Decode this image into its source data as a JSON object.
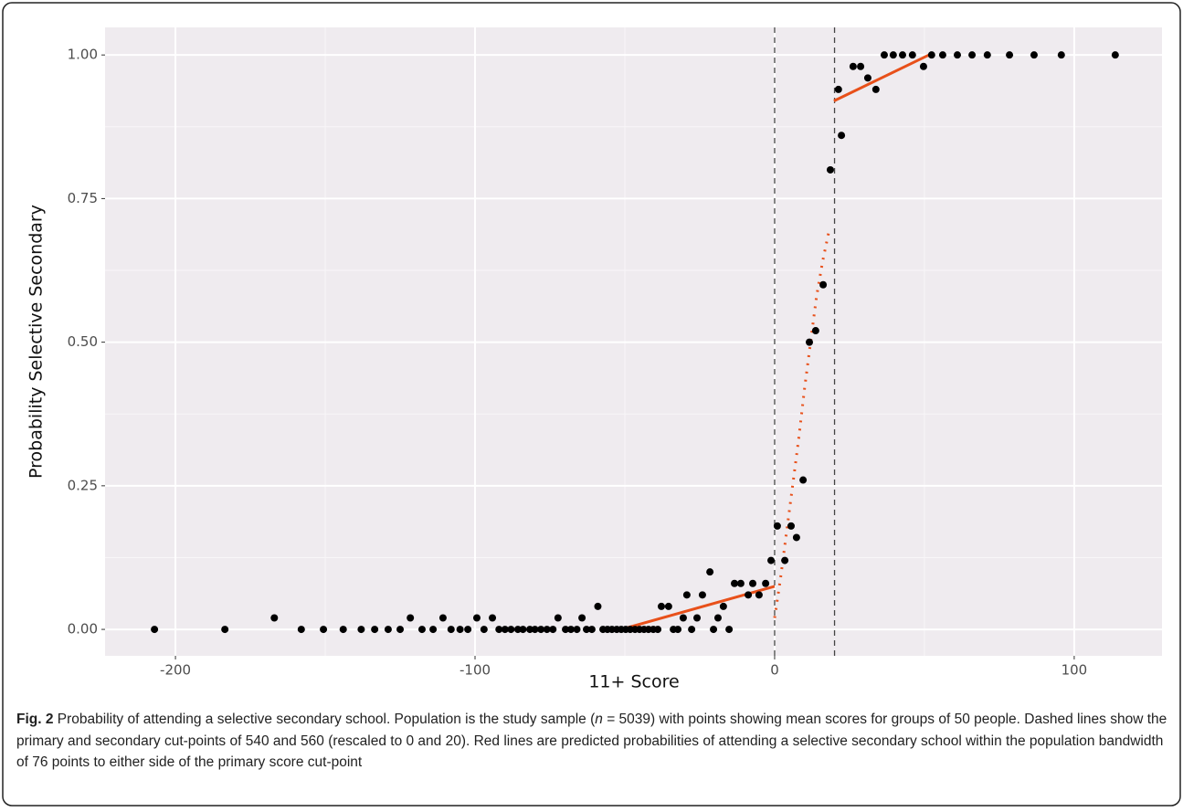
{
  "chart_data": {
    "type": "scatter",
    "xlabel": "11+ Score",
    "ylabel": "Probability Selective Secondary",
    "xlim": [
      -223.5,
      129.3
    ],
    "ylim": [
      -0.046,
      1.048
    ],
    "xticks": [
      -200,
      -100,
      0,
      100
    ],
    "yticks": [
      {
        "value": 0,
        "label": "0.00"
      },
      {
        "value": 0.25,
        "label": "0.25"
      },
      {
        "value": 0.5,
        "label": "0.50"
      },
      {
        "value": 0.75,
        "label": "0.75"
      },
      {
        "value": 1,
        "label": "1.00"
      }
    ],
    "grid": true,
    "vlines": [
      0,
      20
    ],
    "points": {
      "color": "#000000",
      "x": [
        -207,
        -183.5,
        -167,
        -158,
        -150.6,
        -144,
        -138,
        -133.5,
        -129,
        -125,
        -121.6,
        -117.7,
        -114,
        -110.7,
        -108,
        -105,
        -102.4,
        -99.4,
        -97,
        -94.2,
        -92,
        -90,
        -88,
        -85.7,
        -84,
        -81.7,
        -80,
        -78,
        -76,
        -74,
        -72.3,
        -69.8,
        -68,
        -66,
        -64.3,
        -62.8,
        -61,
        -59,
        -57.3,
        -55.8,
        -54.3,
        -52.7,
        -51.2,
        -49.7,
        -48.2,
        -46.6,
        -45.1,
        -43.6,
        -42.1,
        -40.5,
        -39,
        -37.8,
        -35.4,
        -33.8,
        -32.3,
        -30.5,
        -29.3,
        -27.7,
        -25.9,
        -24.1,
        -21.6,
        -20.4,
        -18.9,
        -17.1,
        -15.2,
        -13.4,
        -11.3,
        -8.8,
        -7.3,
        -5.2,
        -3,
        -1.2,
        0.9,
        3.4,
        5.5,
        7.3,
        9.5,
        11.6,
        13.7,
        16.2,
        18.6,
        21.3,
        22.3,
        26.2,
        28.7,
        31.1,
        33.8,
        36.6,
        39.6,
        42.7,
        46,
        49.7,
        52.4,
        56.1,
        61,
        65.9,
        71,
        78.4,
        86.6,
        95.7,
        113.7
      ],
      "values": [
        0,
        0,
        0.02,
        0,
        0,
        0,
        0,
        0,
        0,
        0,
        0.02,
        0,
        0,
        0.02,
        0,
        0,
        0,
        0.02,
        0,
        0.02,
        0,
        0,
        0,
        0,
        0,
        0,
        0,
        0,
        0,
        0,
        0.02,
        0,
        0,
        0,
        0.02,
        0,
        0,
        0.04,
        0,
        0,
        0,
        0,
        0,
        0,
        0,
        0,
        0,
        0,
        0,
        0,
        0,
        0.04,
        0.04,
        0,
        0,
        0.02,
        0.06,
        0,
        0.02,
        0.06,
        0.1,
        0,
        0.02,
        0.04,
        0,
        0.08,
        0.08,
        0.06,
        0.08,
        0.06,
        0.08,
        0.12,
        0.18,
        0.12,
        0.18,
        0.16,
        0.26,
        0.5,
        0.52,
        0.6,
        0.8,
        0.94,
        0.86,
        0.98,
        0.98,
        0.96,
        0.94,
        1,
        1,
        1,
        1,
        0.98,
        1,
        1,
        1,
        1,
        1,
        1,
        1,
        1,
        1
      ]
    },
    "lines": [
      {
        "color": "#e8501a",
        "style": "solid",
        "x": [
          -51.2,
          0
        ],
        "values": [
          0,
          0.075
        ]
      },
      {
        "color": "#e8501a",
        "style": "dotted",
        "x": [
          0,
          2,
          4,
          6,
          8,
          10,
          12,
          14,
          16,
          18
        ],
        "values": [
          0.02,
          0.09,
          0.17,
          0.25,
          0.33,
          0.42,
          0.5,
          0.58,
          0.64,
          0.69
        ]
      },
      {
        "color": "#e8501a",
        "style": "solid",
        "x": [
          19.8,
          51.5
        ],
        "values": [
          0.92,
          1
        ]
      }
    ]
  },
  "caption": {
    "label": "Fig. 2",
    "parts": [
      " Probability of attending a selective secondary school. Population is the study sample (",
      "n",
      " = 5039) with points showing mean scores for groups of 50 people. Dashed lines show the primary and secondary cut-points of 540 and 560 (rescaled to 0 and 20). Red lines are predicted probabilities of attending a selective secondary school within the population bandwidth of 76 points to either side of the primary score cut-point"
    ]
  }
}
